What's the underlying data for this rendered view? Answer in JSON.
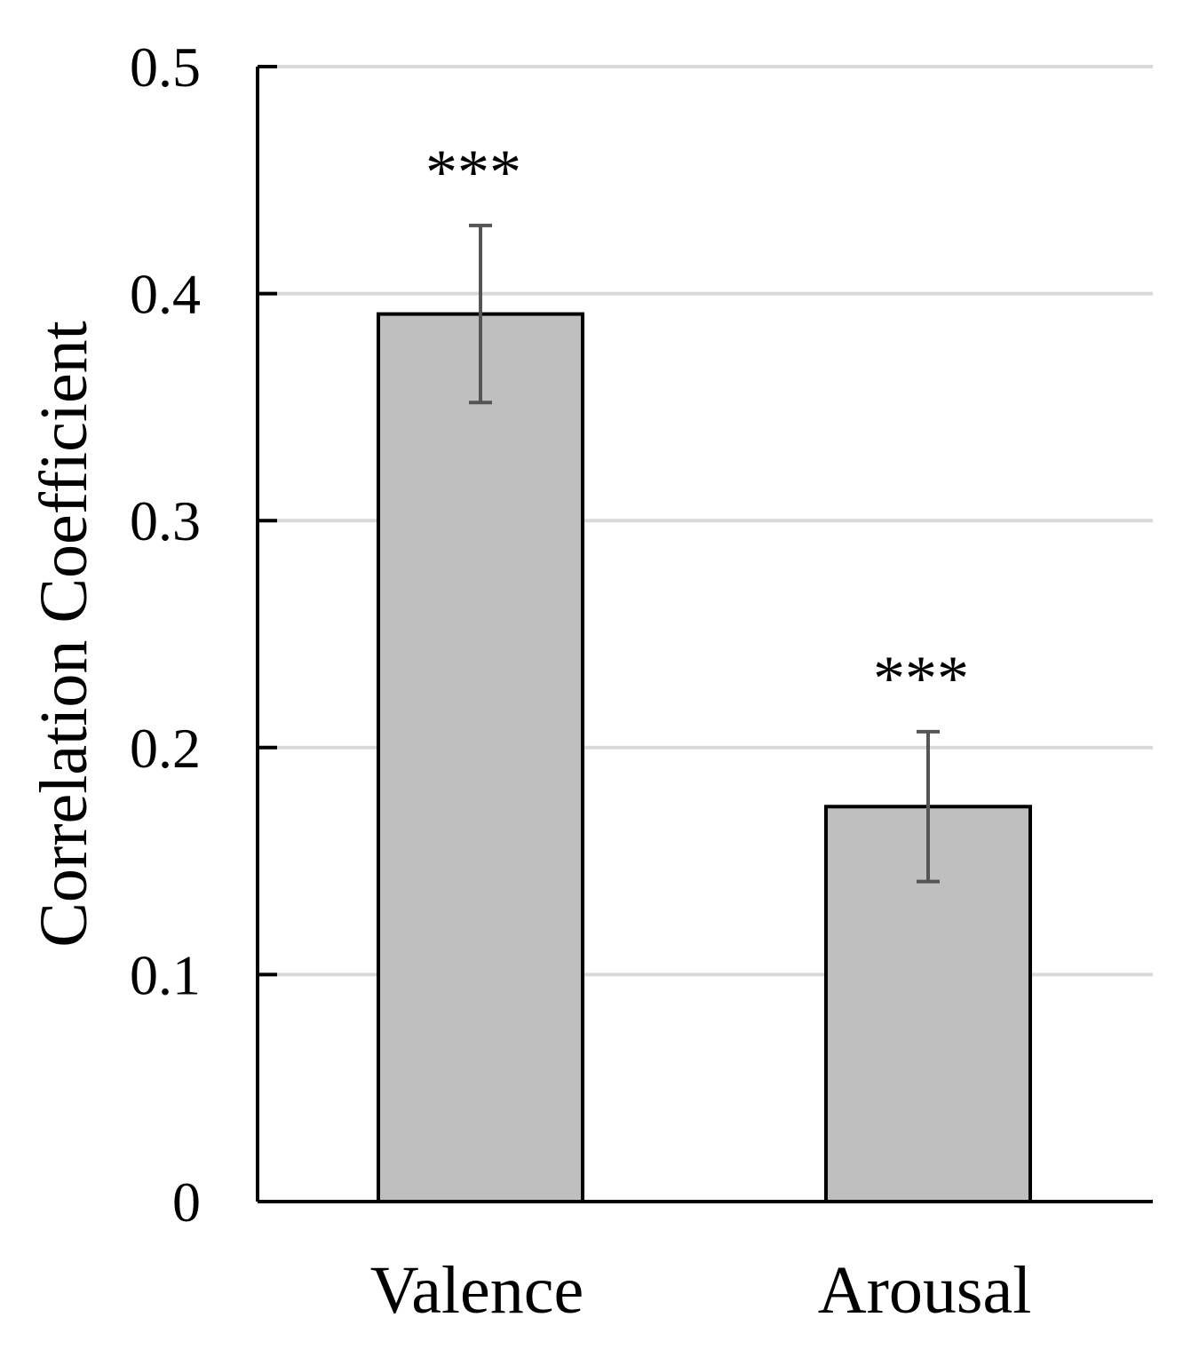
{
  "chart_data": {
    "type": "bar",
    "title": "",
    "xlabel": "",
    "ylabel": "Correlation Coefficient",
    "categories": [
      "Valence",
      "Arousal"
    ],
    "values": [
      0.391,
      0.174
    ],
    "error_low": [
      0.352,
      0.141
    ],
    "error_high": [
      0.43,
      0.207
    ],
    "annotations": [
      "***",
      "***"
    ],
    "ylim": [
      0,
      0.5
    ],
    "yticks": [
      "0",
      "0.1",
      "0.2",
      "0.3",
      "0.4",
      "0.5"
    ],
    "grid": true,
    "legend": "none",
    "colors": {
      "bar_fill": "#bfbfbf",
      "bar_stroke": "#000000",
      "error_bar": "#555555",
      "grid": "#d9d9d9",
      "axis": "#000000"
    }
  }
}
